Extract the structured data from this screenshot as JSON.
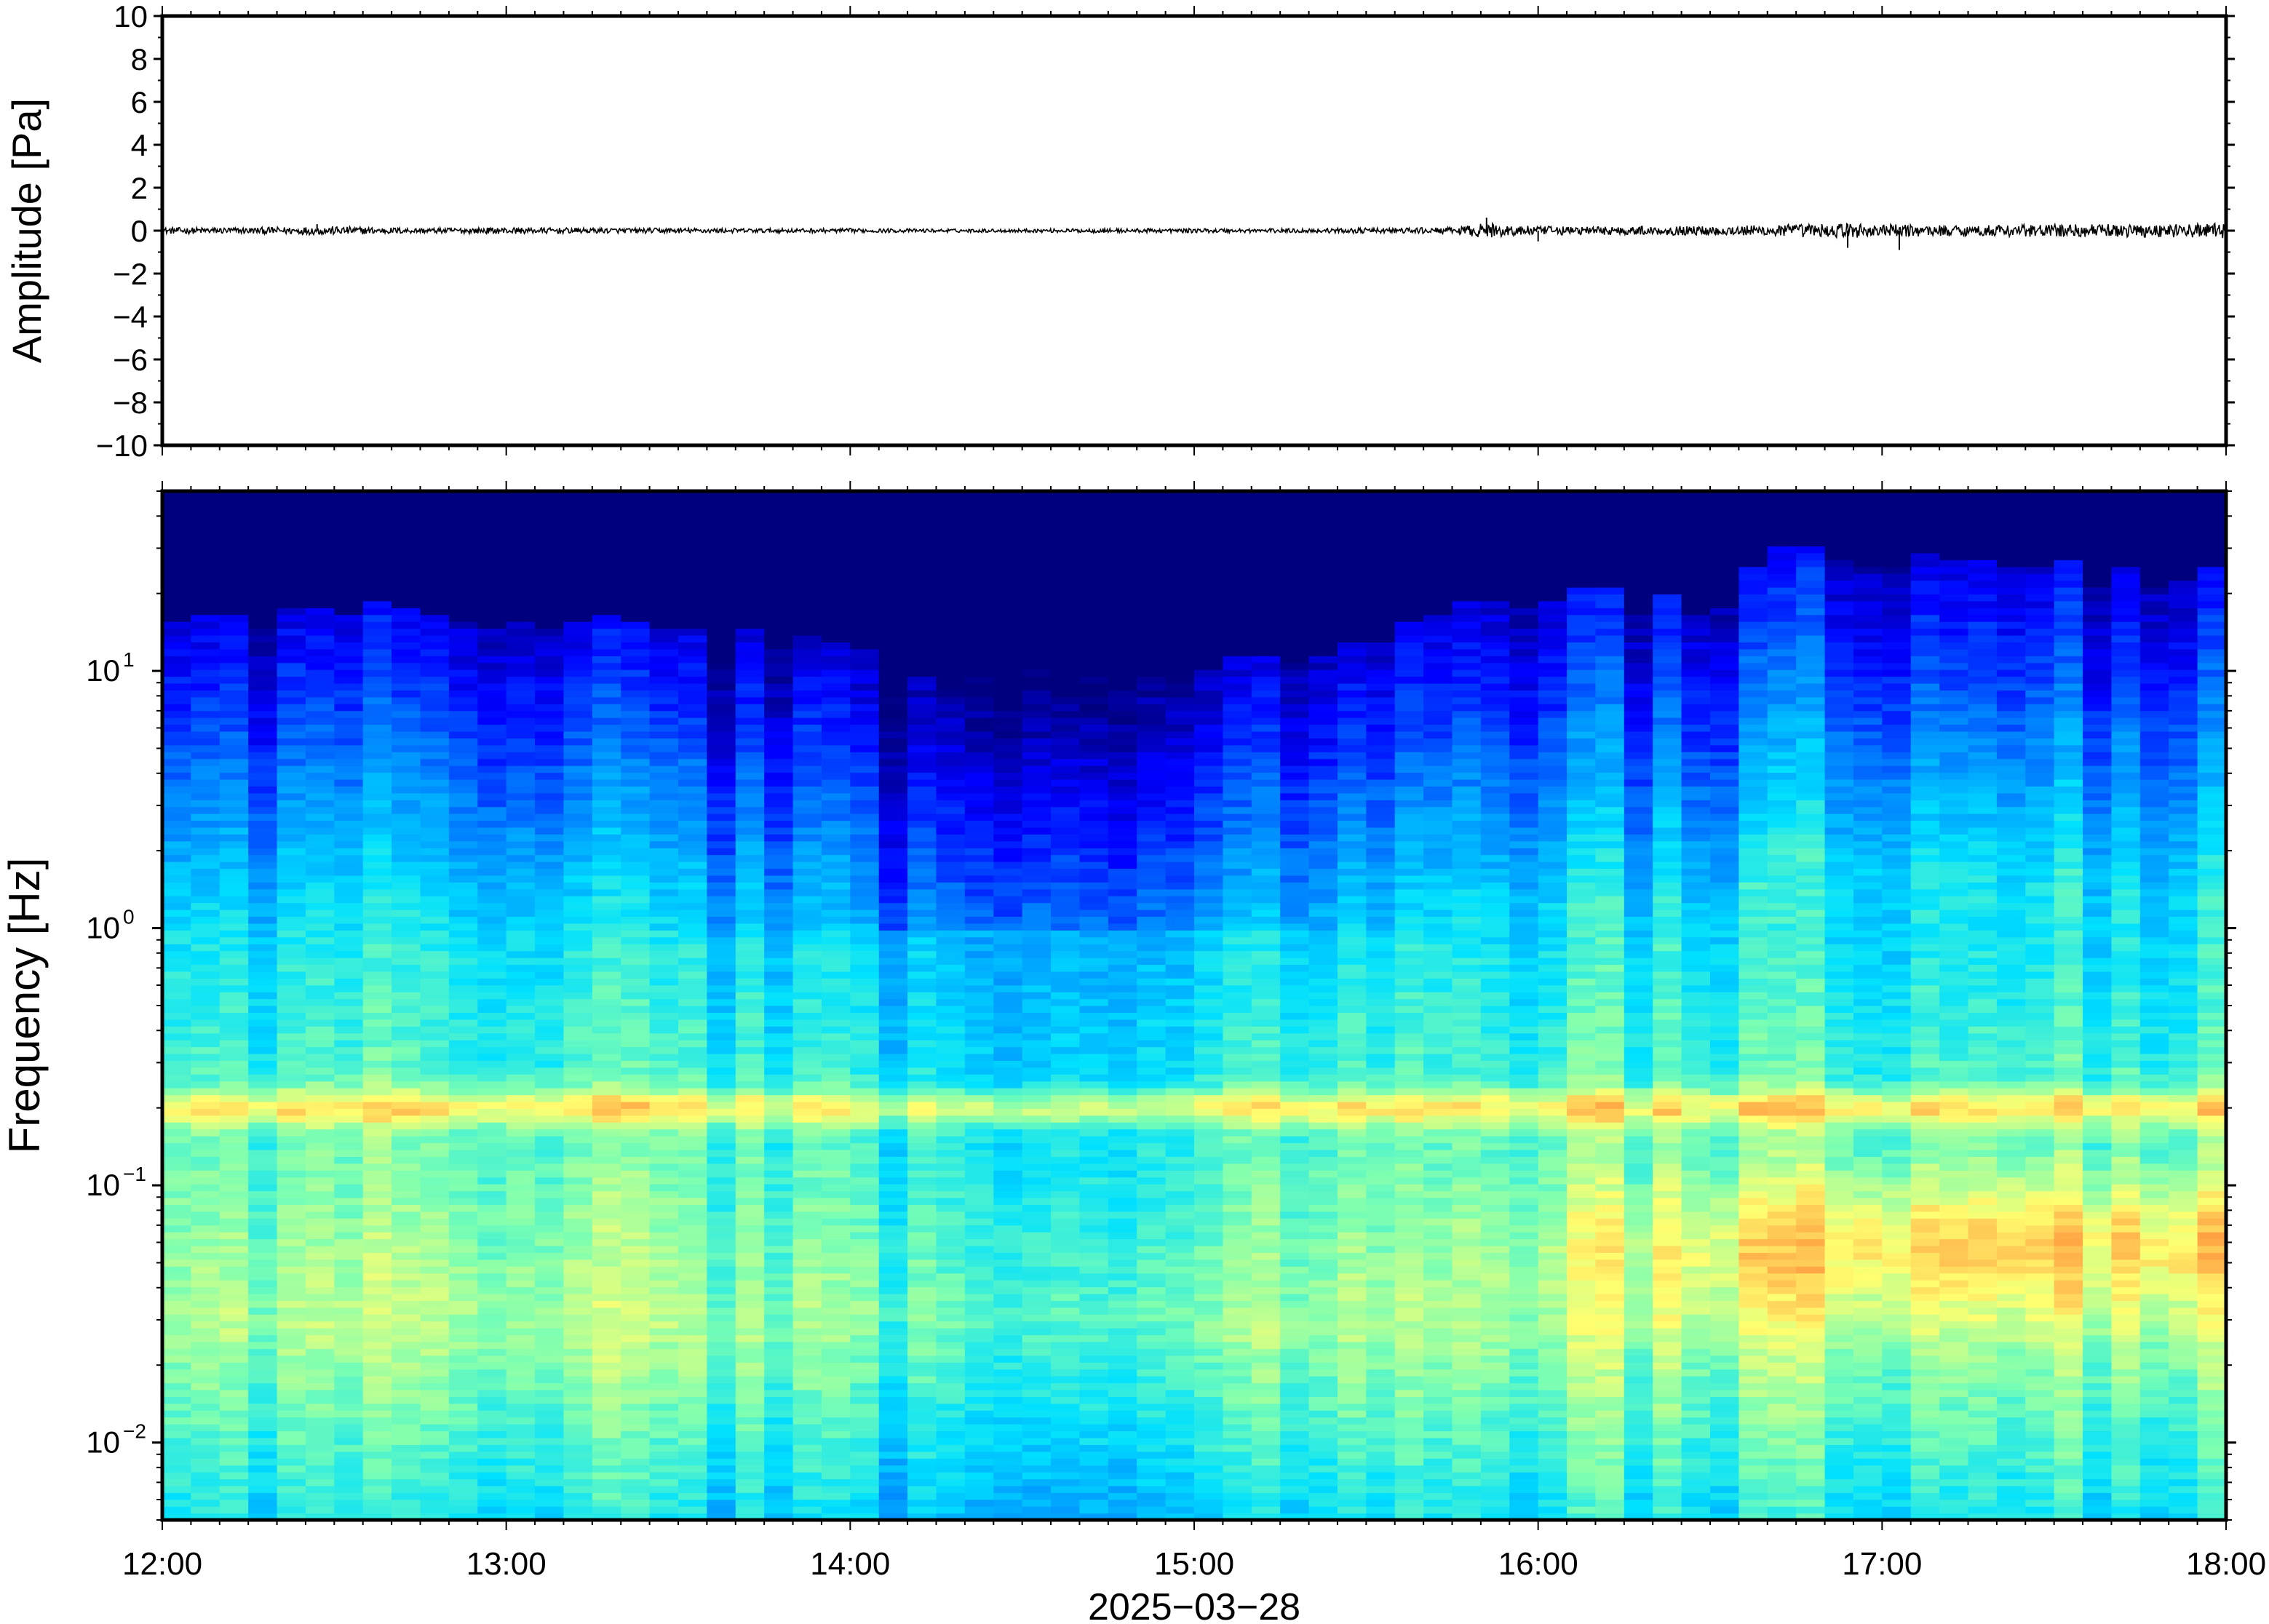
{
  "chart_data": [
    {
      "type": "line",
      "panel": "waveform",
      "ylabel": "Amplitude [Pa]",
      "ylim": [
        -10,
        10
      ],
      "yticks": [
        10,
        8,
        6,
        4,
        2,
        0,
        -2,
        -4,
        -6,
        -8,
        -10
      ],
      "ytick_labels": [
        "10",
        "8",
        "6",
        "4",
        "2",
        "0",
        "−2",
        "−4",
        "−6",
        "−8",
        "−10"
      ],
      "x_range": [
        "12:00",
        "18:00"
      ],
      "line_color": "#000000",
      "envelope": {
        "x_hours": [
          12.0,
          12.25,
          12.5,
          12.75,
          13.0,
          13.25,
          13.5,
          13.75,
          14.0,
          14.25,
          14.5,
          14.75,
          15.0,
          15.25,
          15.5,
          15.75,
          15.85,
          16.0,
          16.25,
          16.5,
          16.75,
          16.9,
          17.0,
          17.25,
          17.5,
          17.75,
          18.0
        ],
        "amplitude_pa": [
          0.15,
          0.15,
          0.2,
          0.12,
          0.15,
          0.12,
          0.12,
          0.1,
          0.1,
          0.08,
          0.08,
          0.1,
          0.1,
          0.1,
          0.12,
          0.15,
          0.35,
          0.2,
          0.2,
          0.22,
          0.3,
          0.35,
          0.3,
          0.25,
          0.3,
          0.3,
          0.35
        ]
      }
    },
    {
      "type": "heatmap",
      "panel": "spectrogram",
      "ylabel": "Frequency [Hz]",
      "yscale": "log",
      "ylim_hz": [
        0.005,
        50
      ],
      "yticks_hz": [
        10,
        1,
        0.1,
        0.01
      ],
      "ytick_labels": [
        {
          "base": "10",
          "exp": "1"
        },
        {
          "base": "10",
          "exp": "0"
        },
        {
          "base": "10",
          "exp": "−1"
        },
        {
          "base": "10",
          "exp": "−2"
        }
      ],
      "xlabel": "2025−03−28",
      "xticks": [
        "12:00",
        "13:00",
        "14:00",
        "15:00",
        "16:00",
        "17:00",
        "18:00"
      ],
      "colormap": "jet",
      "colormap_stops": [
        "#00007f",
        "#0000ff",
        "#0080ff",
        "#00e0ff",
        "#7fffb0",
        "#ffff70",
        "#ff9c40",
        "#ff3010"
      ],
      "microseism_band_hz": 0.2,
      "cutoff_hz": {
        "x_hours": [
          12.0,
          12.5,
          13.0,
          13.5,
          14.0,
          14.25,
          14.5,
          15.0,
          15.5,
          15.8,
          16.0,
          16.5,
          16.7,
          17.0,
          17.5,
          18.0
        ],
        "freq_hz": [
          14,
          15,
          14,
          12,
          10,
          7,
          9,
          9,
          11,
          16,
          17,
          15,
          24,
          25,
          22,
          20
        ]
      }
    }
  ]
}
